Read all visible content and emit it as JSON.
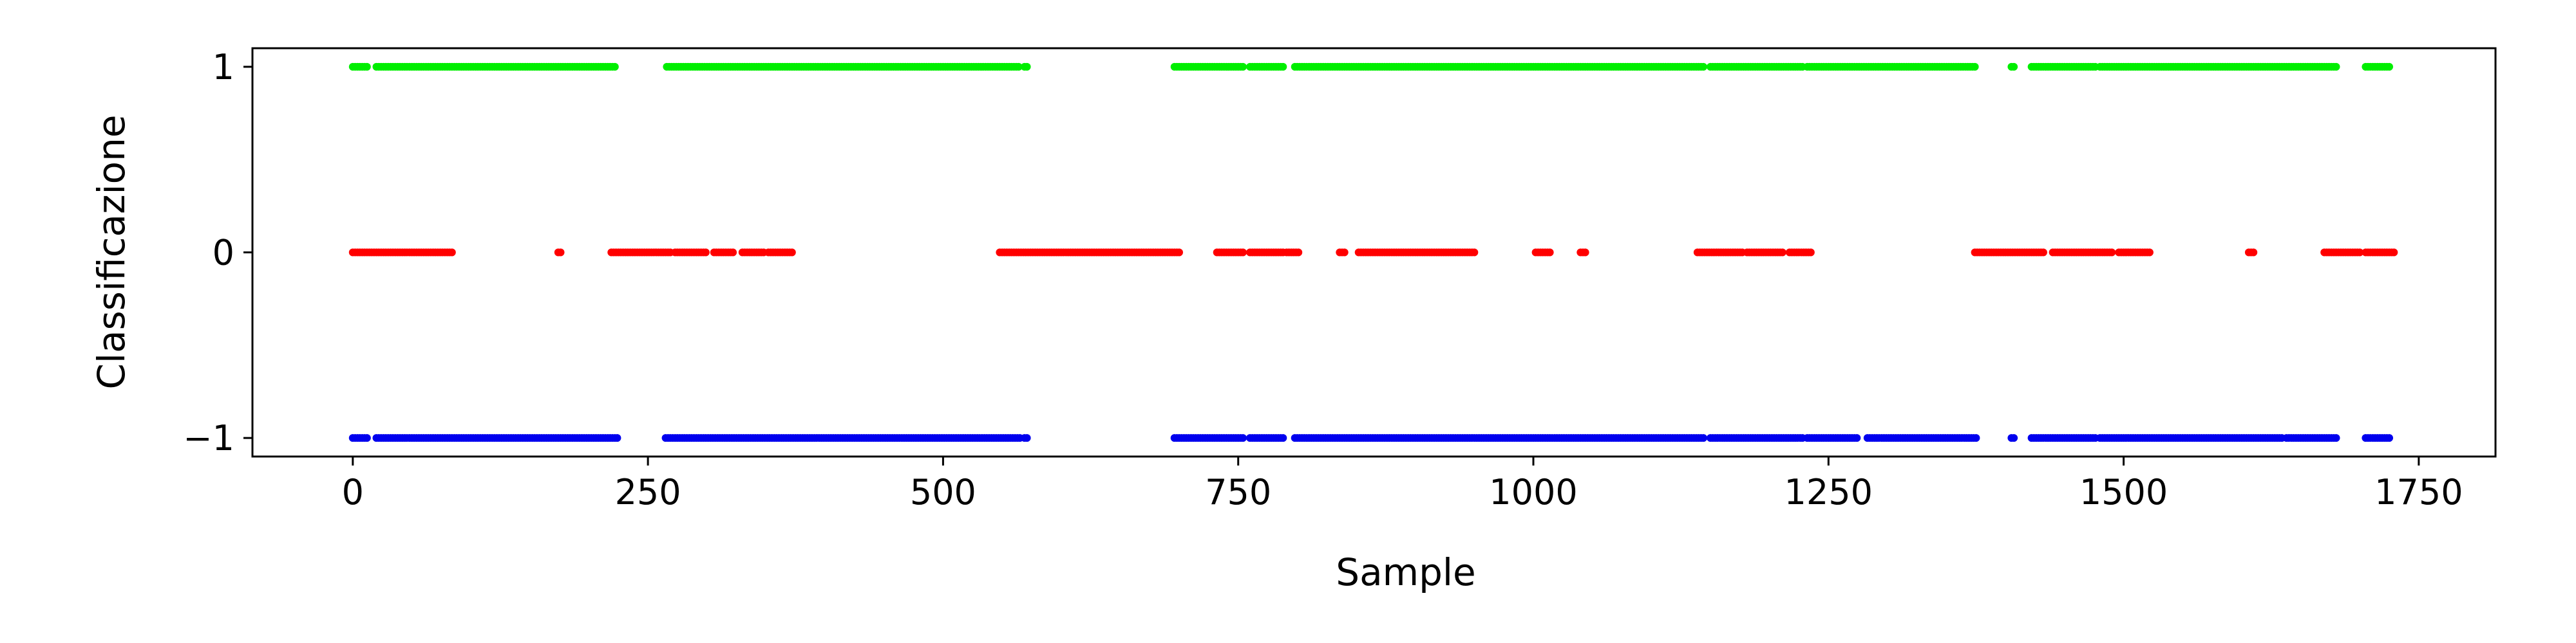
{
  "chart_data": {
    "type": "scatter",
    "xlabel": "Sample",
    "ylabel": "Classificazione",
    "xlim": [
      -85,
      1815
    ],
    "ylim": [
      -1.1,
      1.1
    ],
    "xticks": [
      0,
      250,
      500,
      750,
      1000,
      1250,
      1500,
      1750
    ],
    "xtick_labels": [
      "0",
      "250",
      "500",
      "750",
      "1000",
      "1250",
      "1500",
      "1750"
    ],
    "yticks": [
      1,
      0,
      -1
    ],
    "ytick_labels": [
      "1",
      "0",
      "−1"
    ],
    "grid": false,
    "series": [
      {
        "value": 1,
        "color": "#00ee00",
        "ranges": [
          [
            0,
            13
          ],
          [
            20,
            80
          ],
          [
            82,
            222
          ],
          [
            266,
            565
          ],
          [
            569,
            572
          ],
          [
            696,
            755
          ],
          [
            760,
            788
          ],
          [
            798,
            1145
          ],
          [
            1150,
            1228
          ],
          [
            1232,
            1375
          ],
          [
            1405,
            1408
          ],
          [
            1422,
            1476
          ],
          [
            1480,
            1680
          ],
          [
            1705,
            1725
          ]
        ]
      },
      {
        "value": 0,
        "color": "#ff0000",
        "ranges": [
          [
            0,
            85
          ],
          [
            174,
            177
          ],
          [
            219,
            270
          ],
          [
            273,
            300
          ],
          [
            306,
            323
          ],
          [
            330,
            348
          ],
          [
            352,
            372
          ],
          [
            548,
            700
          ],
          [
            732,
            755
          ],
          [
            760,
            788
          ],
          [
            791,
            802
          ],
          [
            836,
            840
          ],
          [
            852,
            950
          ],
          [
            1002,
            1015
          ],
          [
            1040,
            1044
          ],
          [
            1139,
            1178
          ],
          [
            1181,
            1212
          ],
          [
            1217,
            1236
          ],
          [
            1374,
            1432
          ],
          [
            1440,
            1491
          ],
          [
            1496,
            1522
          ],
          [
            1606,
            1610
          ],
          [
            1670,
            1700
          ],
          [
            1705,
            1730
          ]
        ]
      },
      {
        "value": -1,
        "color": "#0000ee",
        "ranges": [
          [
            0,
            13
          ],
          [
            20,
            225
          ],
          [
            265,
            565
          ],
          [
            569,
            572
          ],
          [
            696,
            755
          ],
          [
            760,
            788
          ],
          [
            798,
            1145
          ],
          [
            1150,
            1228
          ],
          [
            1232,
            1275
          ],
          [
            1283,
            1375
          ],
          [
            1405,
            1408
          ],
          [
            1422,
            1476
          ],
          [
            1480,
            1635
          ],
          [
            1638,
            1680
          ],
          [
            1705,
            1725
          ]
        ]
      }
    ]
  }
}
